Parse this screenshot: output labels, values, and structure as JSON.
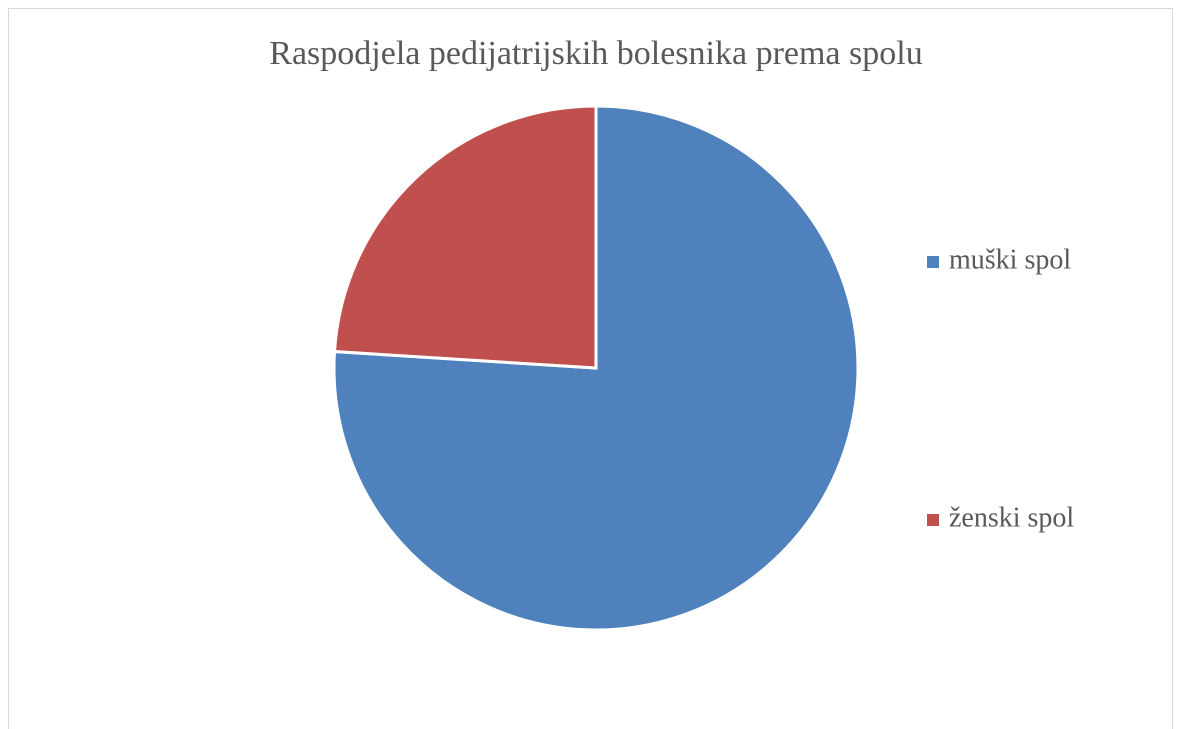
{
  "chart_data": {
    "type": "pie",
    "title": "Raspodjela pedijatrijskih bolesnika prema spolu",
    "categories": [
      "muški spol",
      "ženski spol"
    ],
    "values": [
      76,
      24
    ],
    "colors": [
      "#4f81bd",
      "#c0504d"
    ],
    "legend": "right"
  }
}
